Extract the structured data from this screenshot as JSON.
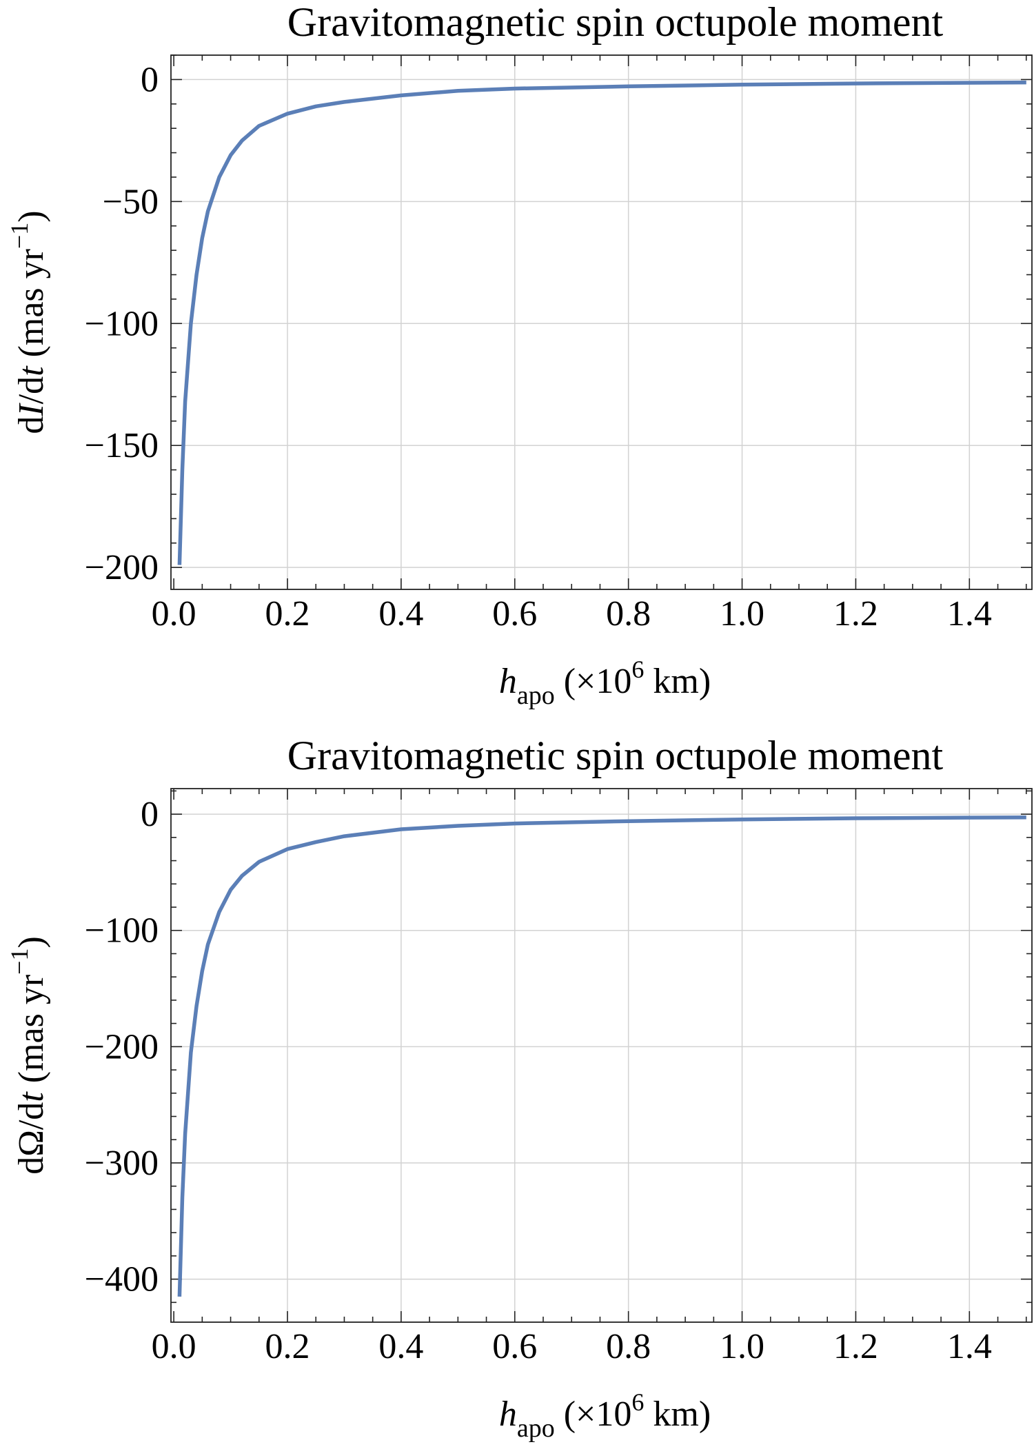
{
  "chart_data": [
    {
      "type": "line",
      "title": "Gravitomagnetic spin octupole moment",
      "ylabel": {
        "prefix": "d",
        "var": "I",
        "mid": "/d",
        "tvar": "t",
        "units": "  (mas  yr",
        "exp": "−1",
        "close": ")"
      },
      "xlabel": {
        "var": "h",
        "sub": "apo",
        "units": "  (×10",
        "exp": "6",
        "tail": " km)"
      },
      "xlim": [
        -0.005,
        1.51
      ],
      "ylim": [
        -209,
        10
      ],
      "xticks": [
        0.0,
        0.2,
        0.4,
        0.6,
        0.8,
        1.0,
        1.2,
        1.4
      ],
      "xtick_labels": [
        "0.0",
        "0.2",
        "0.4",
        "0.6",
        "0.8",
        "1.0",
        "1.2",
        "1.4"
      ],
      "yticks": [
        0,
        -50,
        -100,
        -150,
        -200
      ],
      "ytick_labels": [
        "0",
        "−50",
        "−100",
        "−150",
        "−200"
      ],
      "grid": true,
      "series": [
        {
          "color": "#5b7fb7",
          "x": [
            0.01,
            0.015,
            0.02,
            0.03,
            0.04,
            0.05,
            0.06,
            0.08,
            0.1,
            0.12,
            0.15,
            0.2,
            0.25,
            0.3,
            0.4,
            0.5,
            0.6,
            0.8,
            1.0,
            1.2,
            1.5
          ],
          "y": [
            -199,
            -160,
            -132,
            -100,
            -80,
            -65,
            -54,
            -40,
            -31,
            -25,
            -19,
            -14,
            -11,
            -9.2,
            -6.5,
            -4.6,
            -3.7,
            -2.8,
            -2.1,
            -1.6,
            -1.2
          ]
        }
      ]
    },
    {
      "type": "line",
      "title": "Gravitomagnetic spin octupole moment",
      "ylabel": {
        "prefix": "dΩ/d",
        "var": "",
        "mid": "",
        "tvar": "t",
        "units": "  (mas  yr",
        "exp": "−1",
        "close": ")"
      },
      "xlabel": {
        "var": "h",
        "sub": "apo",
        "units": "  (×10",
        "exp": "6",
        "tail": " km)"
      },
      "xlim": [
        -0.005,
        1.51
      ],
      "ylim": [
        -437,
        22
      ],
      "xticks": [
        0.0,
        0.2,
        0.4,
        0.6,
        0.8,
        1.0,
        1.2,
        1.4
      ],
      "xtick_labels": [
        "0.0",
        "0.2",
        "0.4",
        "0.6",
        "0.8",
        "1.0",
        "1.2",
        "1.4"
      ],
      "yticks": [
        0,
        -100,
        -200,
        -300,
        -400
      ],
      "ytick_labels": [
        "0",
        "−100",
        "−200",
        "−300",
        "−400"
      ],
      "grid": true,
      "series": [
        {
          "color": "#5b7fb7",
          "x": [
            0.01,
            0.015,
            0.02,
            0.03,
            0.04,
            0.05,
            0.06,
            0.08,
            0.1,
            0.12,
            0.15,
            0.2,
            0.25,
            0.3,
            0.4,
            0.5,
            0.6,
            0.8,
            1.0,
            1.2,
            1.5
          ],
          "y": [
            -415,
            -330,
            -275,
            -205,
            -165,
            -135,
            -112,
            -84,
            -65,
            -53,
            -41,
            -30,
            -24,
            -19,
            -13,
            -10,
            -8,
            -6,
            -4.5,
            -3.5,
            -2.7
          ]
        }
      ]
    }
  ]
}
